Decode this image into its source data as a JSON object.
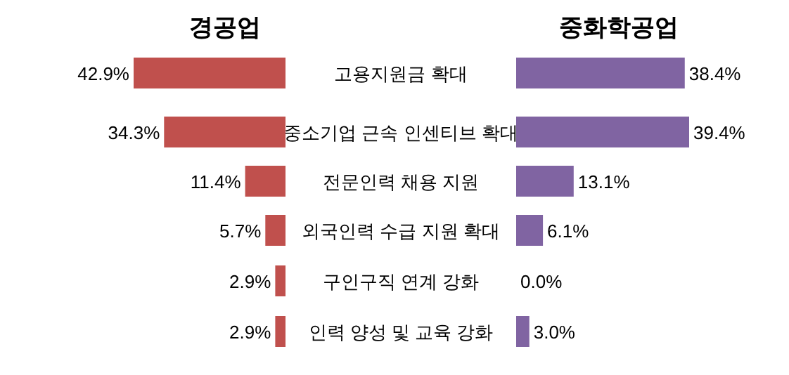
{
  "chart_data": [
    {
      "type": "bar",
      "orientation": "horizontal",
      "title": "경공업",
      "categories": [
        "고용지원금 확대",
        "중소기업 근속 인센티브 확대",
        "전문인력 채용 지원",
        "외국인력 수급 지원 확대",
        "구인구직 연계 강화",
        "인력 양성 및 교육 강화"
      ],
      "values": [
        42.9,
        34.3,
        11.4,
        5.7,
        2.9,
        2.9
      ],
      "value_labels": [
        "42.9%",
        "34.3%",
        "11.4%",
        "5.7%",
        "2.9%",
        "2.9%"
      ],
      "color": "#c0504d"
    },
    {
      "type": "bar",
      "orientation": "horizontal",
      "title": "중화학공업",
      "categories": [
        "고용지원금 확대",
        "중소기업 근속 인센티브 확대",
        "전문인력 채용 지원",
        "외국인력 수급 지원 확대",
        "구인구직 연계 강화",
        "인력 양성 및 교육 강화"
      ],
      "tick_labels": false,
      "values": [
        38.4,
        39.4,
        13.1,
        6.1,
        0.0,
        3.0
      ],
      "value_labels": [
        "38.4%",
        "39.4%",
        "13.1%",
        "6.1%",
        "0.0%",
        "3.0%"
      ],
      "color": "#8064a2"
    }
  ]
}
